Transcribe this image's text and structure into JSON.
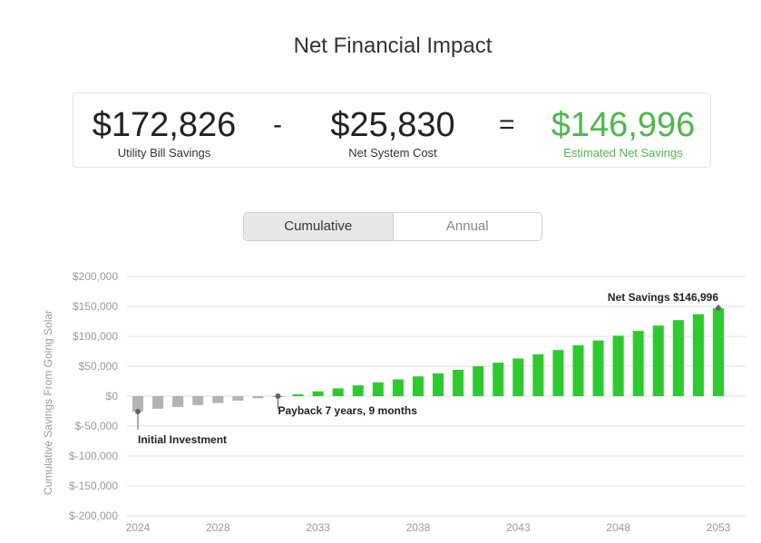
{
  "title": "Net Financial Impact",
  "summary": {
    "bill_savings_value": "$172,826",
    "bill_savings_label": "Utility Bill Savings",
    "minus": "-",
    "system_cost_value": "$25,830",
    "system_cost_label": "Net System Cost",
    "equals": "=",
    "net_savings_value": "$146,996",
    "net_savings_label": "Estimated Net Savings"
  },
  "toggle": {
    "cumulative_label": "Cumulative",
    "annual_label": "Annual",
    "selected": "Cumulative"
  },
  "colors": {
    "positive_bar": "#2ec92e",
    "negative_bar": "#b3b3b3",
    "net_green": "#4cb84c"
  },
  "chart_data": {
    "type": "bar",
    "title": "",
    "ylabel": "Cumulative Savings From Going Solar",
    "xlabel": "",
    "ylim": [
      -200000,
      200000
    ],
    "y_ticks": [
      200000,
      150000,
      100000,
      50000,
      0,
      -50000,
      -100000,
      -150000,
      -200000
    ],
    "y_tick_labels": [
      "$200,000",
      "$150,000",
      "$100,000",
      "$50,000",
      "$0",
      "$-50,000",
      "$-100,000",
      "$-150,000",
      "$-200,000"
    ],
    "x_tick_labels": [
      "2024",
      "2028",
      "2033",
      "2038",
      "2043",
      "2048",
      "2053"
    ],
    "x_tick_years": [
      2024,
      2028,
      2033,
      2038,
      2043,
      2048,
      2053
    ],
    "grid": true,
    "categories": [
      2024,
      2025,
      2026,
      2027,
      2028,
      2029,
      2030,
      2031,
      2032,
      2033,
      2034,
      2035,
      2036,
      2037,
      2038,
      2039,
      2040,
      2041,
      2042,
      2043,
      2044,
      2045,
      2046,
      2047,
      2048,
      2049,
      2050,
      2051,
      2052,
      2053
    ],
    "values": [
      -25830,
      -21000,
      -18000,
      -15000,
      -11500,
      -7500,
      -3500,
      0,
      3000,
      8000,
      13000,
      18000,
      23000,
      28000,
      33000,
      38000,
      44000,
      50000,
      56000,
      63000,
      70000,
      77000,
      85000,
      93000,
      101000,
      109000,
      118000,
      127000,
      137000,
      146996
    ],
    "annotations": [
      {
        "text": "Initial Investment",
        "year": 2024,
        "value": -25830
      },
      {
        "text": "Payback 7 years, 9 months",
        "year": 2031,
        "value": 0
      },
      {
        "text": "Net Savings $146,996",
        "year": 2053,
        "value": 146996
      }
    ]
  }
}
